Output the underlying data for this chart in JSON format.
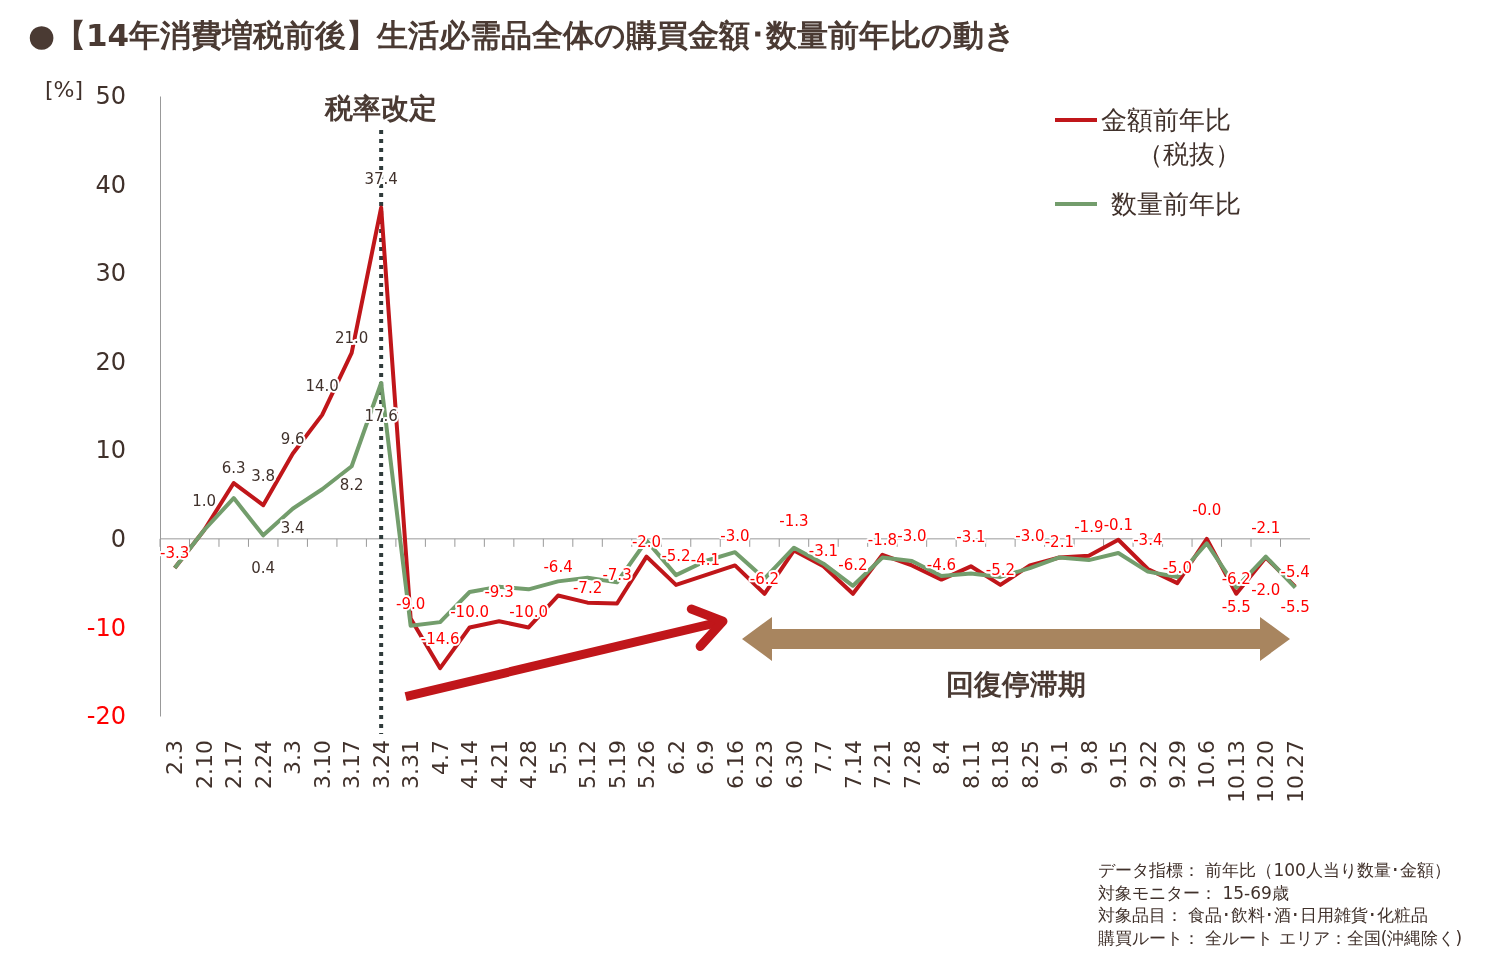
{
  "chart_data": {
    "type": "line",
    "title": "●【14年消費増税前後】生活必需品全体の購買金額･数量前年比の動き",
    "ylabel": "[%]",
    "categories": [
      "2.3",
      "2.10",
      "2.17",
      "2.24",
      "3.3",
      "3.10",
      "3.17",
      "3.24",
      "3.31",
      "4.7",
      "4.14",
      "4.21",
      "4.28",
      "5.5",
      "5.12",
      "5.19",
      "5.26",
      "6.2",
      "6.9",
      "6.16",
      "6.23",
      "6.30",
      "7.7",
      "7.14",
      "7.21",
      "7.28",
      "8.4",
      "8.11",
      "8.18",
      "8.25",
      "9.1",
      "9.8",
      "9.15",
      "9.22",
      "9.29",
      "10.6",
      "10.13",
      "10.20",
      "10.27"
    ],
    "series": [
      {
        "name": "金額前年比（税抜）",
        "color": "#c0161a",
        "values": [
          -3.3,
          1.0,
          6.3,
          3.8,
          9.6,
          14.0,
          21.0,
          37.4,
          -9.0,
          -14.6,
          -10.0,
          -9.3,
          -10.0,
          -6.4,
          -7.2,
          -7.3,
          -2.0,
          -5.2,
          -4.1,
          -3.0,
          -6.2,
          -1.3,
          -3.1,
          -6.2,
          -1.8,
          -3.0,
          -4.6,
          -3.1,
          -5.2,
          -3.0,
          -2.1,
          -1.9,
          -0.1,
          -3.4,
          -5.0,
          -0.0,
          -6.2,
          -2.1,
          -5.4
        ],
        "value_labels": [
          "-3.3",
          "1.0",
          "6.3",
          "3.8",
          "9.6",
          "14.0",
          "21.0",
          "37.4",
          "-9.0",
          "-14.6",
          "-10.0",
          "-9.3",
          "-10.0",
          "-6.4",
          "-7.2",
          "-7.3",
          "-2.0",
          "-5.2",
          "-4.1",
          "-3.0",
          "-6.2",
          "-1.3",
          "-3.1",
          "-6.2",
          "-1.8",
          "-3.0",
          "-4.6",
          "-3.1",
          "-5.2",
          "-3.0",
          "-2.1",
          "-1.9",
          "-0.1",
          "-3.4",
          "-5.0",
          "-0.0",
          "-6.2",
          "-2.1",
          "-5.4"
        ]
      },
      {
        "name": "数量前年比",
        "color": "#739d6c",
        "values": [
          -3.3,
          1.0,
          4.6,
          0.4,
          3.4,
          5.6,
          8.2,
          17.6,
          -9.8,
          -9.4,
          -6.0,
          -5.4,
          -5.7,
          -4.8,
          -4.4,
          -4.9,
          -0.2,
          -4.1,
          -2.5,
          -1.5,
          -4.5,
          -1.0,
          -2.8,
          -5.3,
          -2.1,
          -2.5,
          -4.2,
          -3.9,
          -4.3,
          -3.3,
          -2.1,
          -2.4,
          -1.6,
          -3.7,
          -4.3,
          -0.5,
          -5.5,
          -2.0,
          -5.5
        ],
        "value_labels": [
          null,
          null,
          null,
          "0.4",
          "3.4",
          null,
          "8.2",
          "17.6",
          null,
          null,
          null,
          null,
          null,
          null,
          null,
          null,
          null,
          null,
          null,
          null,
          null,
          null,
          null,
          null,
          null,
          null,
          null,
          null,
          null,
          null,
          null,
          null,
          null,
          null,
          null,
          null,
          "-5.5",
          "-2.0",
          "-5.5"
        ]
      }
    ],
    "ylim": [
      -20,
      50
    ],
    "yticks": [
      -20,
      -10,
      0,
      10,
      20,
      30,
      40,
      50
    ],
    "legend": "top right",
    "ref_lines": [
      {
        "axis": "x",
        "value": "3.24",
        "label": "税率改定",
        "line_style": "dotted",
        "color": "#2f3b3b"
      }
    ],
    "annotations": [
      "回復停滞期",
      "データ指標： 前年比（100人当り数量･金額）",
      "対象モニター： 15-69歳",
      "対象品目： 食品･飲料･酒･日用雑貨･化粧品",
      "購買ルート： 全ルート エリア：全国(沖縄除く)"
    ]
  }
}
